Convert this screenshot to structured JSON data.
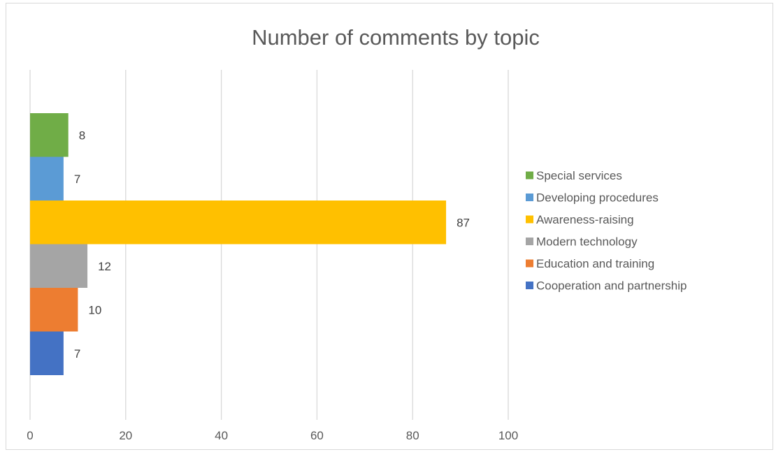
{
  "chart_data": {
    "type": "bar",
    "orientation": "horizontal",
    "title": "Number of comments by topic",
    "xlabel": "",
    "ylabel": "",
    "xlim": [
      0,
      100
    ],
    "xticks": [
      0,
      20,
      40,
      60,
      80,
      100
    ],
    "grid": true,
    "legend_position": "right",
    "categories": [
      "Number of comments by topic"
    ],
    "series": [
      {
        "name": "Special services",
        "values": [
          8
        ],
        "color": "#70ad47"
      },
      {
        "name": "Developing procedures",
        "values": [
          7
        ],
        "color": "#5b9bd5"
      },
      {
        "name": "Awareness-raising",
        "values": [
          87
        ],
        "color": "#ffc000"
      },
      {
        "name": "Modern technology",
        "values": [
          12
        ],
        "color": "#a5a5a5"
      },
      {
        "name": "Education and training",
        "values": [
          10
        ],
        "color": "#ed7d31"
      },
      {
        "name": "Cooperation and partnership",
        "values": [
          7
        ],
        "color": "#4472c4"
      }
    ]
  }
}
